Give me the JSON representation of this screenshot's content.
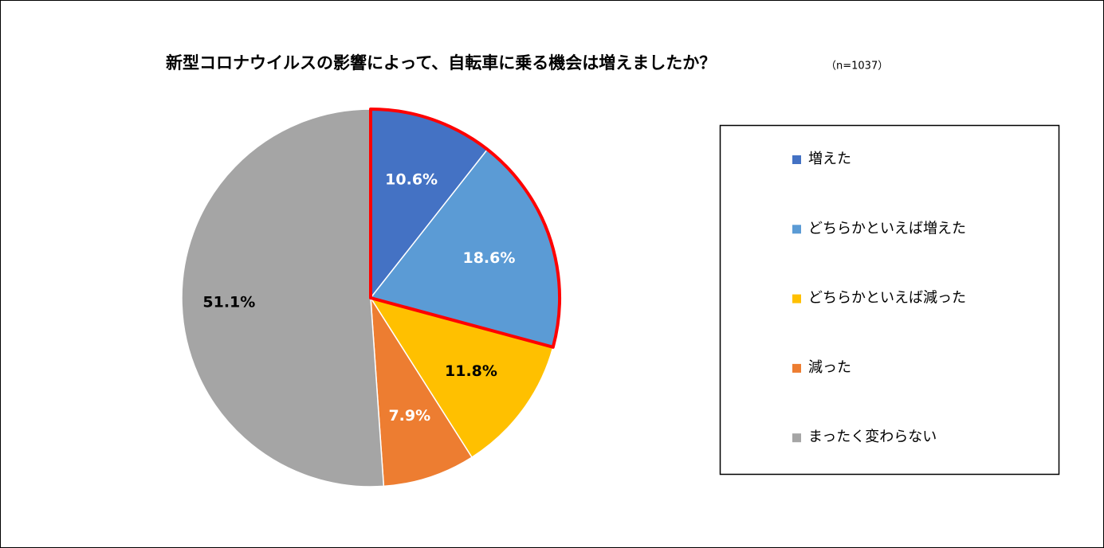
{
  "chart_data": {
    "type": "pie",
    "title": "新型コロナウイルスの影響によって、自転車に乗る機会は増えましたか？",
    "subtitle": "（n=1037）",
    "categories": [
      "増えた",
      "どちらかといえば増えた",
      "どちらかといえば減った",
      "減った",
      "まったく変わらない"
    ],
    "values": [
      10.6,
      18.6,
      11.8,
      7.9,
      51.1
    ],
    "value_labels": [
      "10.6%",
      "18.6%",
      "11.8%",
      "7.9%",
      "51.1%"
    ],
    "colors": [
      "#4472c4",
      "#5b9bd5",
      "#ffc000",
      "#ed7d31",
      "#a5a5a5"
    ],
    "legend": "right"
  }
}
